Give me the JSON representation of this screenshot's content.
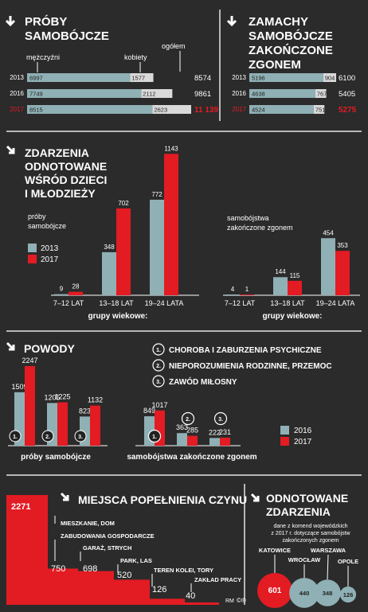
{
  "colors": {
    "bg": "#2b2b2b",
    "teal": "#8fb0b5",
    "red": "#e31b23",
    "white": "#ffffff",
    "light": "#d9d9d9",
    "divider": "#e6e6e6",
    "dark": "#222222"
  },
  "attempts": {
    "title_lines": [
      "PRÓBY",
      "SAMOBÓJCZE"
    ],
    "labels": {
      "male": "mężczyźni",
      "female": "kobiety",
      "total": "ogółem"
    },
    "rows": [
      {
        "year": "2013",
        "male": "6997",
        "female": "1577",
        "total": "8574",
        "highlight": false
      },
      {
        "year": "2016",
        "male": "7749",
        "female": "2112",
        "total": "9861",
        "highlight": false
      },
      {
        "year": "2017",
        "male": "8515",
        "female": "2623",
        "total": "11 139",
        "highlight": true
      }
    ]
  },
  "fatal": {
    "title_lines": [
      "ZAMACHY",
      "SAMOBÓJCZE",
      "ZAKOŃCZONE",
      "ZGONEM"
    ],
    "rows": [
      {
        "year": "2013",
        "male": "5196",
        "female": "904",
        "total": "6100",
        "highlight": false
      },
      {
        "year": "2016",
        "male": "4638",
        "female": "767",
        "total": "5405",
        "highlight": false
      },
      {
        "year": "2017",
        "male": "4524",
        "female": "751",
        "total": "5275",
        "highlight": true
      }
    ]
  },
  "youth": {
    "title_lines": [
      "ZDARZENIA",
      "ODNOTOWANE",
      "WŚRÓD DZIECI",
      "I MŁODZIEŻY"
    ],
    "attempts_label_lines": [
      "próby",
      "samobójcze"
    ],
    "fatal_label_lines": [
      "samobójstwa",
      "zakończone zgonem"
    ],
    "legend": {
      "y2013": "2013",
      "y2017": "2017"
    },
    "axis_caption": "grupy wiekowe:"
  },
  "reasons": {
    "title": "POWODY",
    "legend_items": [
      {
        "num": "1.",
        "label": "CHOROBA I ZABURZENIA PSYCHICZNE"
      },
      {
        "num": "2.",
        "label": "NIEPOROZUMIENIA RODZINNE, PRZEMOC"
      },
      {
        "num": "3.",
        "label": "ZAWÓD MIŁOSNY"
      }
    ],
    "attempts_caption": "próby samobójcze",
    "fatal_caption": "samobójstwa zakończone zgonem",
    "legend": {
      "y2016": "2016",
      "y2017": "2017"
    }
  },
  "places": {
    "title": "MIEJSCA POPEŁNIENIA CZYNU",
    "items": [
      {
        "label": "MIESZKANIE, DOM",
        "value": "2271",
        "num": 2271
      },
      {
        "label": "ZABUDOWANIA GOSPODARCZE",
        "value": "750",
        "num": 750
      },
      {
        "label": "GARAŻ, STRYCH",
        "value": "698",
        "num": 698
      },
      {
        "label": "PARK, LAS",
        "value": "520",
        "num": 520
      },
      {
        "label": "TEREN KOLEI, TORY",
        "value": "126",
        "num": 126
      },
      {
        "label": "ZAKŁAD PRACY",
        "value": "40",
        "num": 40
      }
    ]
  },
  "recorded": {
    "title_lines": [
      "ODNOTOWANE",
      "ZDARZENIA"
    ],
    "subtitle_lines": [
      "dane z komend wojewódzkich",
      "z 2017 r. dotyczące samobójstw",
      "zakończonych zgonem"
    ],
    "cities": [
      {
        "name": "KATOWICE",
        "value": "601",
        "num": 601
      },
      {
        "name": "WROCŁAW",
        "value": "440",
        "num": 440
      },
      {
        "name": "WARSZAWA",
        "value": "348",
        "num": 348
      },
      {
        "name": "OPOLE",
        "value": "126",
        "num": 126
      }
    ]
  },
  "credit": "RM",
  "copyright_marks": "©℗",
  "chart_data": [
    {
      "type": "bar",
      "title": "PRÓBY SAMOBÓJCZE",
      "categories": [
        "2013",
        "2016",
        "2017"
      ],
      "series": [
        {
          "name": "mężczyźni",
          "values": [
            6997,
            7749,
            8515
          ]
        },
        {
          "name": "kobiety",
          "values": [
            1577,
            2112,
            2623
          ]
        },
        {
          "name": "ogółem",
          "values": [
            8574,
            9861,
            11139
          ]
        }
      ]
    },
    {
      "type": "bar",
      "title": "ZAMACHY SAMOBÓJCZE ZAKOŃCZONE ZGONEM",
      "categories": [
        "2013",
        "2016",
        "2017"
      ],
      "series": [
        {
          "name": "mężczyźni",
          "values": [
            5196,
            4638,
            4524
          ]
        },
        {
          "name": "kobiety",
          "values": [
            904,
            767,
            751
          ]
        },
        {
          "name": "ogółem",
          "values": [
            6100,
            5405,
            5275
          ]
        }
      ]
    },
    {
      "type": "bar",
      "title": "próby samobójcze",
      "xlabel": "grupy wiekowe:",
      "categories": [
        "7–12 LAT",
        "13–18 LAT",
        "19–24 LATA"
      ],
      "series": [
        {
          "name": "2013",
          "values": [
            9,
            348,
            772
          ]
        },
        {
          "name": "2017",
          "values": [
            28,
            702,
            1143
          ]
        }
      ]
    },
    {
      "type": "bar",
      "title": "samobójstwa zakończone zgonem",
      "xlabel": "grupy wiekowe:",
      "categories": [
        "7–12 LAT",
        "13–18 LAT",
        "19–24 LATA"
      ],
      "series": [
        {
          "name": "2013",
          "values": [
            4,
            144,
            454
          ]
        },
        {
          "name": "2017",
          "values": [
            1,
            115,
            353
          ]
        }
      ]
    },
    {
      "type": "bar",
      "title": "próby samobójcze",
      "categories": [
        "1.",
        "2.",
        "3."
      ],
      "series": [
        {
          "name": "2016",
          "values": [
            1509,
            1205,
            823
          ]
        },
        {
          "name": "2017",
          "values": [
            2247,
            1225,
            1132
          ]
        }
      ]
    },
    {
      "type": "bar",
      "title": "samobójstwa zakończone zgonem",
      "categories": [
        "1.",
        "2.",
        "3."
      ],
      "series": [
        {
          "name": "2016",
          "values": [
            849,
            363,
            222
          ]
        },
        {
          "name": "2017",
          "values": [
            1017,
            285,
            231
          ]
        }
      ]
    }
  ]
}
